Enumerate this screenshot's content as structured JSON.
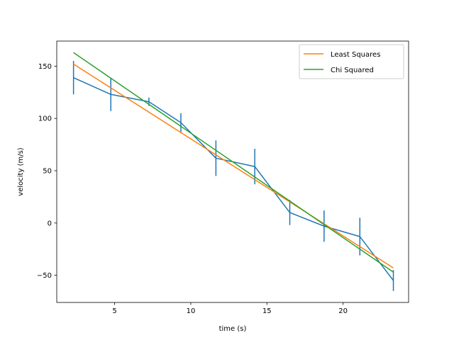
{
  "chart_data": {
    "type": "line",
    "title": "",
    "xlabel": "time (s)",
    "ylabel": "velocity (m/s)",
    "xlim": [
      1.2,
      24.3
    ],
    "ylim": [
      -76,
      174
    ],
    "xticks": [
      5,
      10,
      15,
      20
    ],
    "yticks": [
      -50,
      0,
      50,
      100,
      150
    ],
    "grid": false,
    "legend_position": "top-right",
    "series": [
      {
        "name": "",
        "kind": "errorbar-line",
        "color": "#1f77b4",
        "x": [
          2.3,
          4.75,
          7.25,
          9.35,
          11.65,
          14.2,
          16.5,
          18.75,
          21.1,
          23.3
        ],
        "y": [
          139,
          123,
          116,
          96,
          62,
          54,
          10,
          -3,
          -13,
          -55
        ],
        "yerr": [
          16,
          16,
          4,
          9,
          17,
          17,
          12,
          15,
          18,
          10
        ]
      },
      {
        "name": "Least Squares",
        "kind": "line",
        "color": "#ff7f0e",
        "x": [
          2.3,
          23.3
        ],
        "y": [
          152,
          -43
        ]
      },
      {
        "name": "Chi Squared",
        "kind": "line",
        "color": "#2ca02c",
        "x": [
          2.3,
          23.3
        ],
        "y": [
          163,
          -47
        ]
      }
    ]
  }
}
